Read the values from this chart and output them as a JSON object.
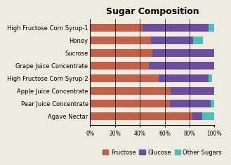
{
  "title": "Sugar Composition",
  "categories": [
    "High Fructose Corn Syrup-1",
    "Honey",
    "Sucrose",
    "Grape Juice Concentrate",
    "High Fructose Corn Syrup-2",
    "Apple Juice Concentrate",
    "Pear Juice Concentrate",
    "Agave Nectar"
  ],
  "fructose": [
    42,
    49,
    50,
    47,
    55,
    65,
    64,
    82
  ],
  "glucose": [
    53,
    34,
    50,
    53,
    40,
    35,
    33,
    8
  ],
  "other": [
    5,
    8,
    0,
    0,
    3,
    0,
    3,
    10
  ],
  "colors": {
    "fructose": "#C1614A",
    "glucose": "#6B4F9E",
    "other": "#4BBFB8"
  },
  "legend_labels": [
    "Fructose",
    "Glucose",
    "Other Sugars"
  ],
  "xlabel_ticks": [
    "0%",
    "20%",
    "40%",
    "60%",
    "80%",
    "100%"
  ],
  "title_fontsize": 9,
  "label_fontsize": 6,
  "tick_fontsize": 5.5,
  "legend_fontsize": 6,
  "background_color": "#f0ebe0"
}
